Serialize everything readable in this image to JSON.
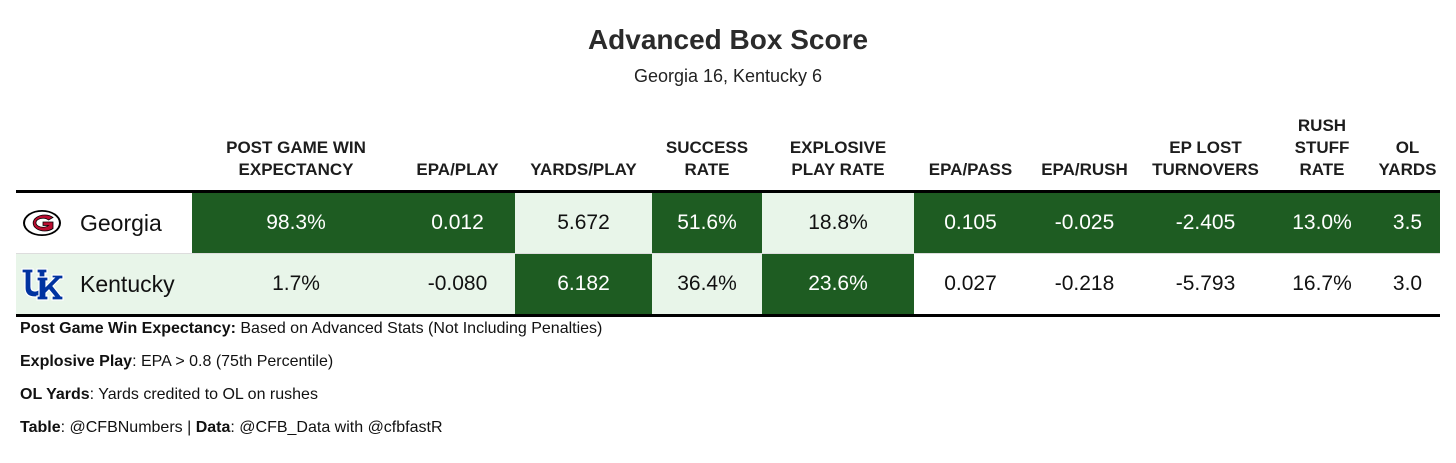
{
  "title": "Advanced Box Score",
  "subtitle": "Georgia 16, Kentucky 6",
  "columns": [
    {
      "label": "POST GAME WIN\nEXPECTANCY"
    },
    {
      "label": "EPA/PLAY"
    },
    {
      "label": "YARDS/PLAY"
    },
    {
      "label": "SUCCESS\nRATE"
    },
    {
      "label": "EXPLOSIVE\nPLAY RATE"
    },
    {
      "label": "EPA/PASS"
    },
    {
      "label": "EPA/RUSH"
    },
    {
      "label": "EP LOST\nTURNOVERS"
    },
    {
      "label": "RUSH\nSTUFF\nRATE"
    },
    {
      "label": "OL\nYARDS"
    }
  ],
  "rows": [
    {
      "team": "Georgia",
      "logo": "georgia-g-logo",
      "cells": [
        {
          "text": "98.3%",
          "shade": "dark"
        },
        {
          "text": "0.012",
          "shade": "dark"
        },
        {
          "text": "5.672",
          "shade": "light"
        },
        {
          "text": "51.6%",
          "shade": "dark"
        },
        {
          "text": "18.8%",
          "shade": "light"
        },
        {
          "text": "0.105",
          "shade": "dark"
        },
        {
          "text": "-0.025",
          "shade": "dark"
        },
        {
          "text": "-2.405",
          "shade": "dark"
        },
        {
          "text": "13.0%",
          "shade": "dark"
        },
        {
          "text": "3.5",
          "shade": "dark"
        }
      ]
    },
    {
      "team": "Kentucky",
      "logo": "kentucky-uk-logo",
      "cells": [
        {
          "text": "1.7%",
          "shade": "light"
        },
        {
          "text": "-0.080",
          "shade": "light"
        },
        {
          "text": "6.182",
          "shade": "dark"
        },
        {
          "text": "36.4%",
          "shade": "light"
        },
        {
          "text": "23.6%",
          "shade": "dark"
        },
        {
          "text": "0.027",
          "shade": "white"
        },
        {
          "text": "-0.218",
          "shade": "white"
        },
        {
          "text": "-5.793",
          "shade": "white"
        },
        {
          "text": "16.7%",
          "shade": "white"
        },
        {
          "text": "3.0",
          "shade": "white"
        }
      ]
    }
  ],
  "notes": [
    {
      "bold": "Post Game Win Expectancy:",
      "text": " Based on Advanced Stats (Not Including Penalties)"
    },
    {
      "bold": "Explosive Play",
      "text": ": EPA > 0.8 (75th Percentile)"
    },
    {
      "bold": "OL Yards",
      "text": ": Yards credited to OL on rushes"
    },
    {
      "bold": "Table",
      "text": ": @CFBNumbers | ",
      "bold2": "Data",
      "text2": ": @CFB_Data with @cfbfastR"
    }
  ],
  "colors": {
    "dark": "#1e5c22",
    "light": "#e8f5e9",
    "white": "#ffffff"
  },
  "chart_data": {
    "type": "table",
    "title": "Advanced Box Score",
    "subtitle": "Georgia 16, Kentucky 6",
    "columns": [
      "POST GAME WIN EXPECTANCY",
      "EPA/PLAY",
      "YARDS/PLAY",
      "SUCCESS RATE",
      "EXPLOSIVE PLAY RATE",
      "EPA/PASS",
      "EPA/RUSH",
      "EP LOST TURNOVERS",
      "RUSH STUFF RATE",
      "OL YARDS"
    ],
    "series": [
      {
        "name": "Georgia",
        "values": [
          98.3,
          0.012,
          5.672,
          51.6,
          18.8,
          0.105,
          -0.025,
          -2.405,
          13.0,
          3.5
        ]
      },
      {
        "name": "Kentucky",
        "values": [
          1.7,
          -0.08,
          6.182,
          36.4,
          23.6,
          0.027,
          -0.218,
          -5.793,
          16.7,
          3.0
        ]
      }
    ]
  }
}
